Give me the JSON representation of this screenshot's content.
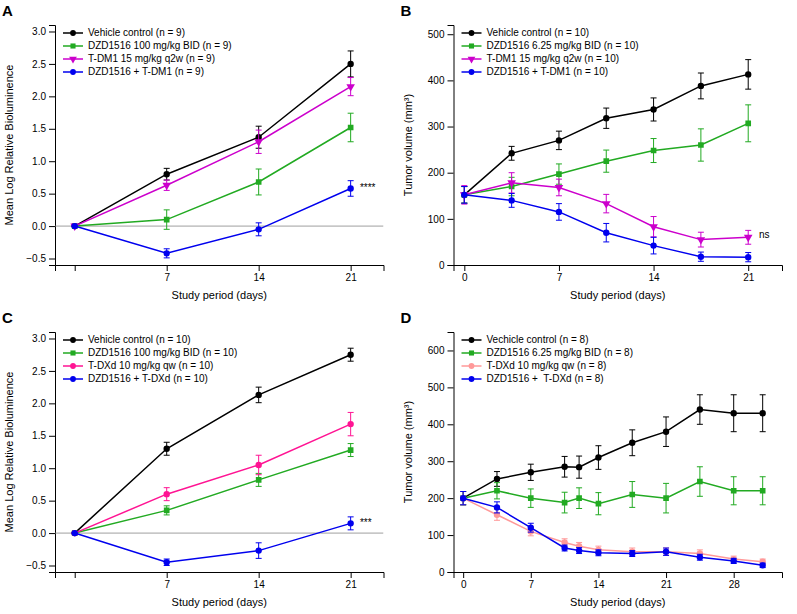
{
  "chart_data": [
    {
      "type": "line",
      "title": "A",
      "xlabel": "Study period (days)",
      "ylabel": "Mean Log Relative Bioluminence",
      "xlim": [
        -1.5,
        23.5
      ],
      "ylim": [
        -0.6,
        3.1
      ],
      "xticks": [
        {
          "value": 0,
          "label": null
        },
        7,
        14,
        21
      ],
      "yticks": [
        {
          "value": -0.5,
          "label": "−0.5"
        },
        {
          "value": 0.0,
          "label": "0.0"
        },
        0.5,
        {
          "value": 1.0,
          "label": "1.0"
        },
        1.5,
        {
          "value": 2.0,
          "label": "2.0"
        },
        2.5,
        {
          "value": 3.0,
          "label": "3.0"
        }
      ],
      "grid": false,
      "legend": "upper left",
      "hline": 0.0,
      "series": [
        {
          "name": "Vehicle control (n = 9)",
          "color": "#000000",
          "marker": "circle",
          "x": [
            0,
            7,
            14,
            21
          ],
          "values": [
            0.0,
            0.8,
            1.37,
            2.5
          ],
          "errors": [
            0.0,
            0.09,
            0.17,
            0.2
          ]
        },
        {
          "name": "DZD1516 100 mg/kg BID (n = 9)",
          "color": "#22AA22",
          "marker": "square",
          "x": [
            0,
            7,
            14,
            21
          ],
          "values": [
            0.0,
            0.1,
            0.68,
            1.52
          ],
          "errors": [
            0.0,
            0.15,
            0.2,
            0.22
          ]
        },
        {
          "name": "T-DM1 15 mg/kg q2w (n = 9)",
          "color": "#CC00CC",
          "marker": "triangle-down",
          "x": [
            0,
            7,
            14,
            21
          ],
          "values": [
            0.0,
            0.63,
            1.3,
            2.15
          ],
          "errors": [
            0.0,
            0.08,
            0.18,
            0.14
          ]
        },
        {
          "name": "DZD1516 + T-DM1 (n = 9)",
          "color": "#0000EE",
          "marker": "circle",
          "x": [
            0,
            7,
            14,
            21
          ],
          "values": [
            0.0,
            -0.42,
            -0.05,
            0.58
          ],
          "errors": [
            0.0,
            0.07,
            0.1,
            0.12
          ]
        }
      ],
      "annotations": [
        {
          "text": "****",
          "x": 21.4,
          "y": 0.58
        }
      ]
    },
    {
      "type": "line",
      "title": "B",
      "xlabel": "Study period (days)",
      "ylabel": "Tumor volume (mm³)",
      "xlim": [
        -0.8,
        23.5
      ],
      "ylim": [
        0,
        520
      ],
      "xticks": [
        0,
        7,
        14,
        21
      ],
      "yticks": [
        0,
        100,
        200,
        300,
        400,
        500
      ],
      "grid": false,
      "legend": "upper left",
      "series": [
        {
          "name": "Vehicle control (n = 10)",
          "color": "#000000",
          "marker": "circle",
          "x": [
            0,
            3.5,
            7,
            10.5,
            14,
            17.5,
            21
          ],
          "values": [
            152,
            242,
            270,
            318,
            337,
            388,
            413
          ],
          "errors": [
            18,
            15,
            20,
            22,
            25,
            28,
            32
          ]
        },
        {
          "name": "DZD1516 6.25 mg/kg BID (n = 10)",
          "color": "#22AA22",
          "marker": "square",
          "x": [
            0,
            3.5,
            7,
            10.5,
            14,
            17.5,
            21
          ],
          "values": [
            152,
            170,
            197,
            225,
            248,
            260,
            307
          ],
          "errors": [
            18,
            20,
            22,
            24,
            26,
            35,
            40
          ]
        },
        {
          "name": "T-DM1 15 mg/kg q2w (n = 10)",
          "color": "#CC00CC",
          "marker": "triangle-down",
          "x": [
            0,
            3.5,
            7,
            10.5,
            14,
            17.5,
            21
          ],
          "values": [
            152,
            178,
            168,
            133,
            83,
            55,
            60
          ],
          "errors": [
            20,
            22,
            18,
            20,
            22,
            16,
            15
          ]
        },
        {
          "name": "DZD1516 + T-DM1 (n = 10)",
          "color": "#0000EE",
          "marker": "circle",
          "x": [
            0,
            3.5,
            7,
            10.5,
            14,
            17.5,
            21
          ],
          "values": [
            152,
            140,
            115,
            70,
            42,
            18,
            17
          ],
          "errors": [
            18,
            15,
            18,
            20,
            18,
            10,
            10
          ]
        }
      ],
      "annotations": [
        {
          "text": "ns",
          "x": 21.5,
          "y": 65
        }
      ]
    },
    {
      "type": "line",
      "title": "C",
      "xlabel": "Study period (days)",
      "ylabel": "Mean Log Relative Bioluminence",
      "xlim": [
        -1.5,
        23.5
      ],
      "ylim": [
        -0.6,
        3.1
      ],
      "xticks": [
        {
          "value": 0,
          "label": null
        },
        7,
        14,
        21
      ],
      "yticks": [
        {
          "value": -0.5,
          "label": "−0.5"
        },
        {
          "value": 0.0,
          "label": "0.0"
        },
        0.5,
        {
          "value": 1.0,
          "label": "1.0"
        },
        1.5,
        {
          "value": 2.0,
          "label": "2.0"
        },
        2.5,
        {
          "value": 3.0,
          "label": "3.0"
        }
      ],
      "grid": false,
      "legend": "upper left",
      "hline": 0.0,
      "series": [
        {
          "name": "Vehicle control (n = 10)",
          "color": "#000000",
          "marker": "circle",
          "x": [
            0,
            7,
            14,
            21
          ],
          "values": [
            0.0,
            1.3,
            2.13,
            2.75
          ],
          "errors": [
            0.0,
            0.1,
            0.12,
            0.1
          ]
        },
        {
          "name": "DZD1516 100 mg/kg BID (n = 10)",
          "color": "#22AA22",
          "marker": "square",
          "x": [
            0,
            7,
            14,
            21
          ],
          "values": [
            0.0,
            0.35,
            0.82,
            1.28
          ],
          "errors": [
            0.0,
            0.07,
            0.1,
            0.1
          ]
        },
        {
          "name": "T-DXd 10 mg/kg qw (n = 10)",
          "color": "#FF1493",
          "marker": "circle",
          "x": [
            0,
            7,
            14,
            21
          ],
          "values": [
            0.0,
            0.6,
            1.05,
            1.68
          ],
          "errors": [
            0.0,
            0.1,
            0.15,
            0.18
          ]
        },
        {
          "name": "DZD1516 + T-DXd (n = 10)",
          "color": "#0000EE",
          "marker": "circle",
          "x": [
            0,
            7,
            14,
            21
          ],
          "values": [
            0.0,
            -0.45,
            -0.27,
            0.15
          ],
          "errors": [
            0.0,
            0.05,
            0.12,
            0.1
          ]
        }
      ],
      "annotations": [
        {
          "text": "***",
          "x": 21.4,
          "y": 0.15
        }
      ]
    },
    {
      "type": "line",
      "title": "D",
      "xlabel": "Study period (days)",
      "ylabel": "Tumor volume (mm³)",
      "xlim": [
        -1,
        33
      ],
      "ylim": [
        0,
        650
      ],
      "xticks": [
        0,
        7,
        14,
        21,
        28
      ],
      "yticks": [
        0,
        100,
        200,
        300,
        400,
        500,
        600
      ],
      "grid": false,
      "legend": "upper left",
      "series": [
        {
          "name": "Vechicle control (n = 8)",
          "color": "#000000",
          "marker": "circle",
          "x": [
            0,
            3.5,
            7,
            10.5,
            12,
            14,
            17.5,
            21,
            24.5,
            28,
            31
          ],
          "values": [
            200,
            252,
            270,
            285,
            284,
            310,
            350,
            380,
            440,
            430,
            430
          ],
          "errors": [
            18,
            20,
            22,
            28,
            30,
            32,
            35,
            40,
            40,
            50,
            50
          ]
        },
        {
          "name": "DZD1516 6.25 mg/kg BID (n = 8)",
          "color": "#22AA22",
          "marker": "square",
          "x": [
            0,
            3.5,
            7,
            10.5,
            12,
            14,
            17.5,
            21,
            24.5,
            28,
            31
          ],
          "values": [
            200,
            220,
            200,
            188,
            200,
            185,
            210,
            200,
            245,
            220,
            220
          ],
          "errors": [
            18,
            22,
            25,
            28,
            28,
            30,
            35,
            40,
            40,
            38,
            38
          ]
        },
        {
          "name": "T-DXd 10 mg/kg qw (n = 8)",
          "color": "#FF9999",
          "marker": "circle",
          "x": [
            0,
            3.5,
            7,
            10.5,
            12,
            14,
            17.5,
            21,
            24.5,
            28,
            31
          ],
          "values": [
            200,
            155,
            110,
            80,
            70,
            60,
            55,
            55,
            50,
            35,
            28
          ],
          "errors": [
            18,
            15,
            12,
            10,
            10,
            10,
            10,
            10,
            10,
            8,
            7
          ]
        },
        {
          "name": "DZD1516 +  T-DXd (n = 8)",
          "color": "#0000EE",
          "marker": "circle",
          "x": [
            0,
            3.5,
            7,
            10.5,
            12,
            14,
            17.5,
            21,
            24.5,
            28,
            31
          ],
          "values": [
            200,
            175,
            120,
            65,
            58,
            52,
            50,
            55,
            40,
            30,
            18
          ],
          "errors": [
            18,
            15,
            12,
            8,
            8,
            8,
            8,
            10,
            8,
            7,
            6
          ]
        }
      ]
    }
  ]
}
